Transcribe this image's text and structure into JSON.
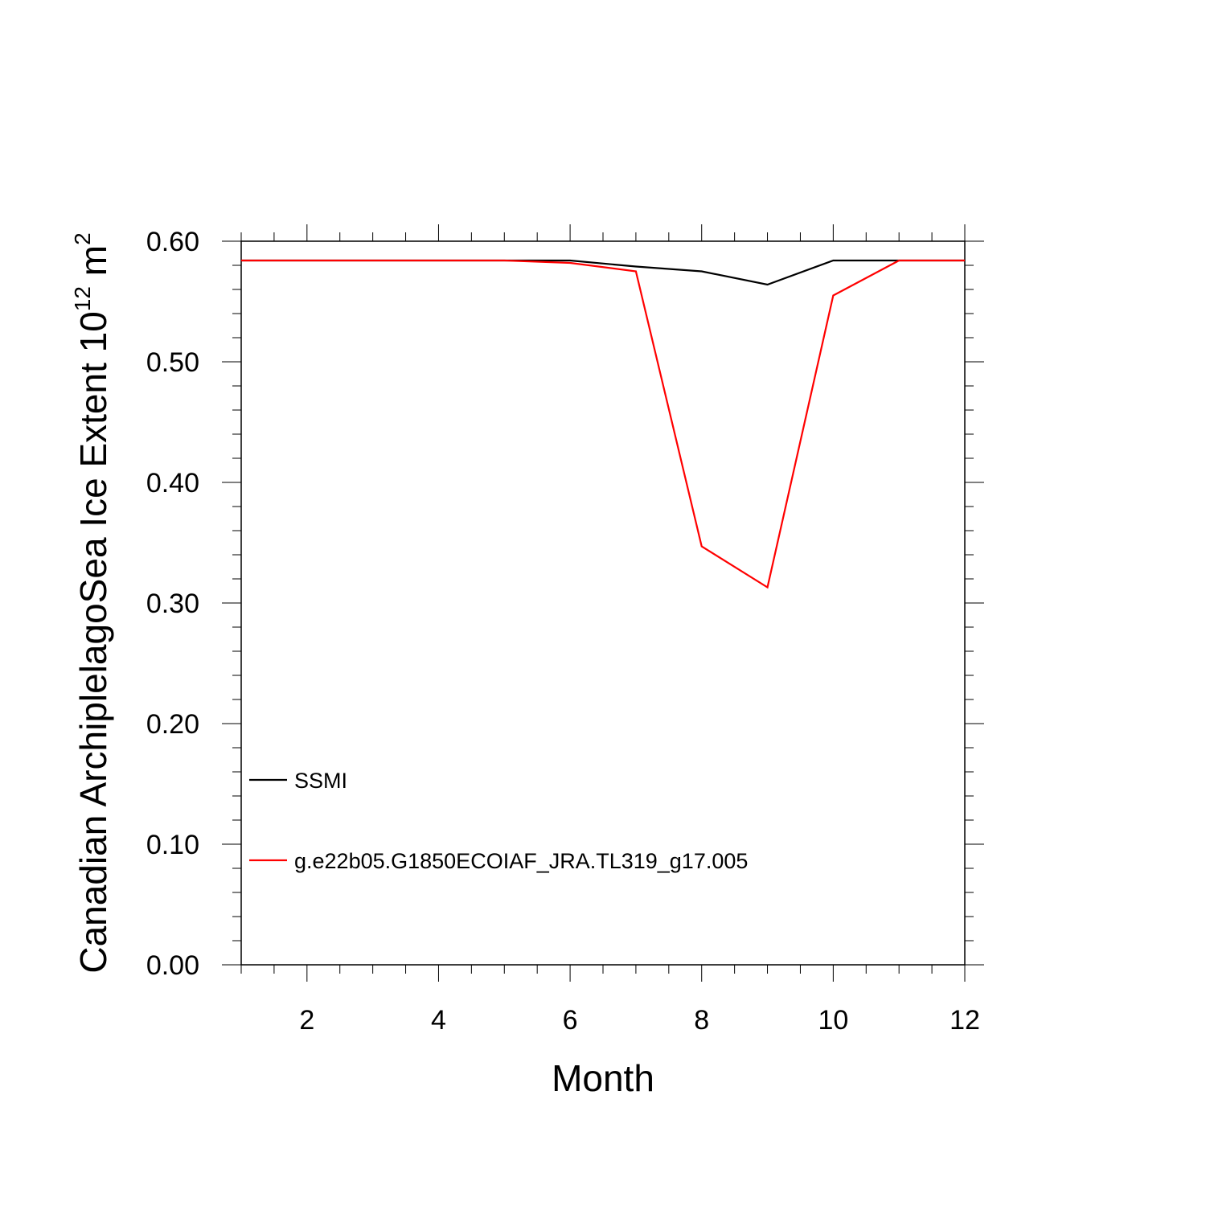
{
  "chart_data": {
    "type": "line",
    "title": "",
    "xlabel": "Month",
    "ylabel": "Canadian ArchiplelagoSea Ice Extent 10",
    "ylabel_sup1": "12",
    "ylabel_mid": " m",
    "ylabel_sup2": "2",
    "xlim": [
      1,
      12
    ],
    "ylim": [
      0.0,
      0.6
    ],
    "x_ticks": [
      2,
      4,
      6,
      8,
      10,
      12
    ],
    "y_ticks": [
      0.0,
      0.1,
      0.2,
      0.3,
      0.4,
      0.5,
      0.6
    ],
    "y_tick_labels": [
      "0.00",
      "0.10",
      "0.20",
      "0.30",
      "0.40",
      "0.50",
      "0.60"
    ],
    "grid": false,
    "legend_position": "lower-left",
    "x": [
      1,
      2,
      3,
      4,
      5,
      6,
      7,
      8,
      9,
      10,
      11,
      12
    ],
    "series": [
      {
        "name": "SSMI",
        "color": "#000000",
        "values": [
          0.584,
          0.584,
          0.584,
          0.584,
          0.584,
          0.584,
          0.579,
          0.575,
          0.564,
          0.584,
          0.584,
          0.584
        ]
      },
      {
        "name": "g.e22b05.G1850ECOIAF_JRA.TL319_g17.005",
        "color": "#ff0000",
        "values": [
          0.584,
          0.584,
          0.584,
          0.584,
          0.584,
          0.582,
          0.575,
          0.347,
          0.313,
          0.555,
          0.584,
          0.584
        ]
      }
    ]
  }
}
